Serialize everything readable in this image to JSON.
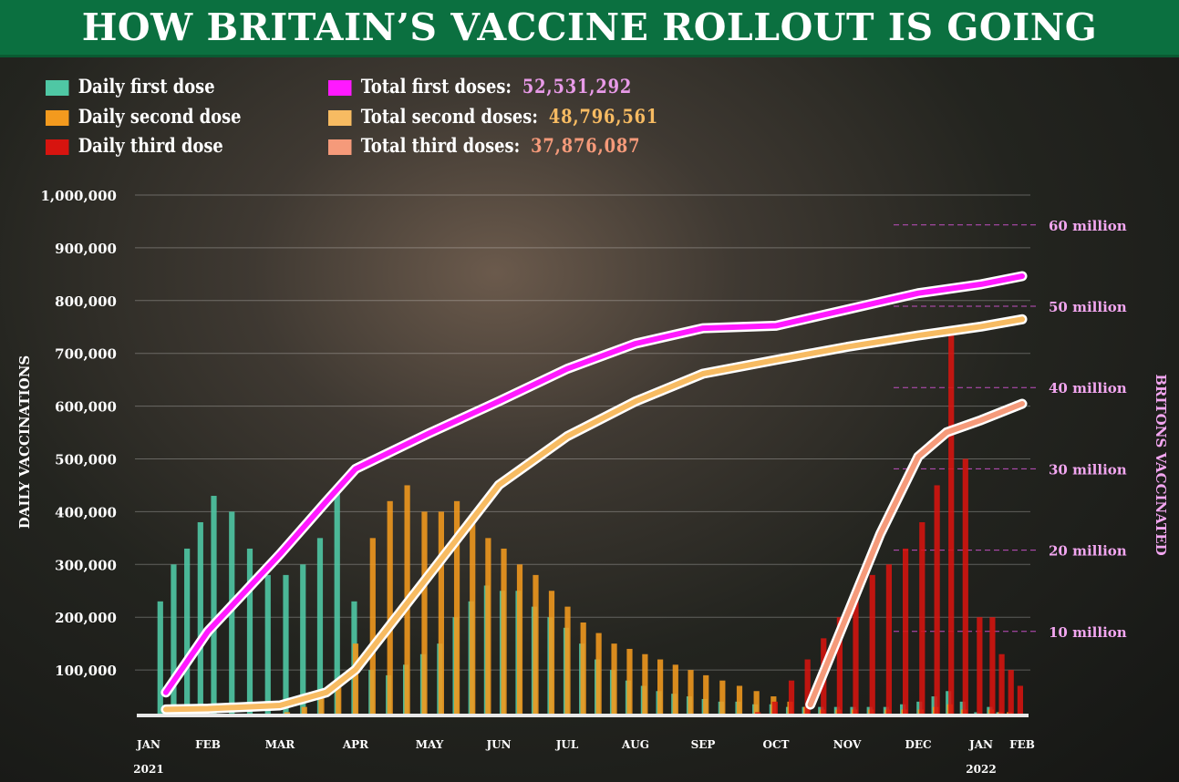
{
  "title": "HOW BRITAIN’S VACCINE ROLLOUT IS GOING",
  "legend": {
    "daily": [
      {
        "label": "Daily first dose",
        "color": "#4fc7a4"
      },
      {
        "label": "Daily second dose",
        "color": "#f39a1e"
      },
      {
        "label": "Daily third dose",
        "color": "#d7140f"
      }
    ],
    "totals": [
      {
        "label": "Total first doses:",
        "value": "52,531,292",
        "color": "#ff19ff",
        "value_color": "#e89ae8"
      },
      {
        "label": "Total second doses:",
        "value": "48,796,561",
        "color": "#f7bb62",
        "value_color": "#f7bb62"
      },
      {
        "label": "Total third doses:",
        "value": "37,876,087",
        "color": "#f59a7a",
        "value_color": "#f59a7a"
      }
    ]
  },
  "chart_data": {
    "type": "bar+line",
    "ylabel": "DAILY VACCINATIONS",
    "y2label": "BRITONS VACCINATED",
    "ylim": [
      0,
      1000000
    ],
    "y2lim_millions": [
      0,
      65
    ],
    "yticks": [
      "100,000",
      "200,000",
      "300,000",
      "400,000",
      "500,000",
      "600,000",
      "700,000",
      "800,000",
      "900,000",
      "1,000,000"
    ],
    "ytick_values": [
      100000,
      200000,
      300000,
      400000,
      500000,
      600000,
      700000,
      800000,
      900000,
      1000000
    ],
    "y2ticks": [
      "10 million",
      "20 million",
      "30 million",
      "40 million",
      "50 million",
      "60 million"
    ],
    "y2tick_values": [
      10,
      20,
      30,
      40,
      50,
      60
    ],
    "xticks": [
      {
        "month": "JAN",
        "year": "2021",
        "date": "2021-01-01"
      },
      {
        "month": "FEB",
        "date": "2021-02-01"
      },
      {
        "month": "MAR",
        "date": "2021-03-01"
      },
      {
        "month": "APR",
        "date": "2021-04-01"
      },
      {
        "month": "MAY",
        "date": "2021-05-01"
      },
      {
        "month": "JUN",
        "date": "2021-06-01"
      },
      {
        "month": "JUL",
        "date": "2021-07-01"
      },
      {
        "month": "AUG",
        "date": "2021-08-01"
      },
      {
        "month": "SEP",
        "date": "2021-09-01"
      },
      {
        "month": "OCT",
        "date": "2021-10-01"
      },
      {
        "month": "NOV",
        "date": "2021-11-01"
      },
      {
        "month": "DEC",
        "date": "2021-12-01"
      },
      {
        "month": "JAN",
        "year": "2022",
        "date": "2022-01-01"
      },
      {
        "month": "FEB",
        "date": "2022-02-01"
      }
    ],
    "grid": true,
    "weeks": [
      "2021-01-04",
      "2021-01-11",
      "2021-01-18",
      "2021-01-25",
      "2021-02-01",
      "2021-02-08",
      "2021-02-15",
      "2021-02-22",
      "2021-03-01",
      "2021-03-08",
      "2021-03-15",
      "2021-03-22",
      "2021-03-29",
      "2021-04-05",
      "2021-04-12",
      "2021-04-19",
      "2021-04-26",
      "2021-05-03",
      "2021-05-10",
      "2021-05-17",
      "2021-05-24",
      "2021-05-31",
      "2021-06-07",
      "2021-06-14",
      "2021-06-21",
      "2021-06-28",
      "2021-07-05",
      "2021-07-12",
      "2021-07-19",
      "2021-07-26",
      "2021-08-02",
      "2021-08-09",
      "2021-08-16",
      "2021-08-23",
      "2021-08-30",
      "2021-09-06",
      "2021-09-13",
      "2021-09-20",
      "2021-09-27",
      "2021-10-04",
      "2021-10-11",
      "2021-10-18",
      "2021-10-25",
      "2021-11-01",
      "2021-11-08",
      "2021-11-15",
      "2021-11-22",
      "2021-11-29",
      "2021-12-06",
      "2021-12-13",
      "2021-12-20",
      "2021-12-27",
      "2022-01-03",
      "2022-01-10",
      "2022-01-17",
      "2022-01-24"
    ],
    "bar_series": [
      {
        "name": "Daily first dose",
        "color": "#4fc7a4",
        "values": [
          230000,
          300000,
          330000,
          380000,
          430000,
          400000,
          330000,
          280000,
          280000,
          300000,
          350000,
          450000,
          230000,
          100000,
          90000,
          110000,
          130000,
          150000,
          200000,
          230000,
          260000,
          250000,
          250000,
          220000,
          200000,
          180000,
          150000,
          120000,
          100000,
          80000,
          70000,
          60000,
          55000,
          50000,
          45000,
          40000,
          40000,
          35000,
          35000,
          30000,
          30000,
          30000,
          30000,
          30000,
          30000,
          30000,
          35000,
          40000,
          50000,
          60000,
          40000,
          20000,
          30000,
          20000,
          15000,
          10000
        ]
      },
      {
        "name": "Daily second dose",
        "color": "#f39a1e",
        "values": [
          10000,
          10000,
          10000,
          10000,
          10000,
          10000,
          10000,
          15000,
          20000,
          30000,
          50000,
          80000,
          150000,
          350000,
          420000,
          450000,
          400000,
          400000,
          420000,
          380000,
          350000,
          330000,
          300000,
          280000,
          250000,
          220000,
          190000,
          170000,
          150000,
          140000,
          130000,
          120000,
          110000,
          100000,
          90000,
          80000,
          70000,
          60000,
          50000,
          40000,
          30000,
          25000,
          25000,
          25000,
          25000,
          25000,
          25000,
          25000,
          30000,
          35000,
          25000,
          15000,
          25000,
          20000,
          20000,
          15000
        ]
      },
      {
        "name": "Daily third dose",
        "color": "#d7140f",
        "values": [
          0,
          0,
          0,
          0,
          0,
          0,
          0,
          0,
          0,
          0,
          0,
          0,
          0,
          0,
          0,
          0,
          0,
          0,
          0,
          0,
          0,
          0,
          0,
          0,
          0,
          0,
          0,
          0,
          0,
          0,
          0,
          0,
          0,
          0,
          0,
          0,
          0,
          20000,
          40000,
          80000,
          120000,
          160000,
          200000,
          250000,
          280000,
          300000,
          330000,
          380000,
          450000,
          750000,
          500000,
          200000,
          200000,
          130000,
          100000,
          70000
        ]
      }
    ],
    "line_series": [
      {
        "name": "Total first doses",
        "color": "#ff19ff",
        "dates": [
          "2021-01-10",
          "2021-02-01",
          "2021-03-01",
          "2021-03-20",
          "2021-04-01",
          "2021-05-01",
          "2021-06-01",
          "2021-07-01",
          "2021-08-01",
          "2021-09-01",
          "2021-10-01",
          "2021-11-01",
          "2021-12-01",
          "2022-01-01",
          "2022-02-01"
        ],
        "millions": [
          2.5,
          10,
          19.5,
          26,
          30,
          34.4,
          38.3,
          42.3,
          45.4,
          47.3,
          47.6,
          49.6,
          51.6,
          52.7,
          53.7
        ]
      },
      {
        "name": "Total second doses",
        "color": "#f7bb62",
        "dates": [
          "2021-01-10",
          "2021-02-01",
          "2021-03-01",
          "2021-03-20",
          "2021-04-01",
          "2021-05-01",
          "2021-06-01",
          "2021-07-01",
          "2021-08-01",
          "2021-09-01",
          "2021-10-01",
          "2021-11-01",
          "2021-12-01",
          "2022-01-01",
          "2022-02-01"
        ],
        "millions": [
          0.4,
          0.5,
          0.9,
          2.5,
          5.3,
          17,
          28,
          34,
          38.3,
          41.7,
          43.4,
          45,
          46.4,
          47.5,
          48.4
        ]
      },
      {
        "name": "Total third doses",
        "color": "#f59a7a",
        "dates": [
          "2021-10-16",
          "2021-11-01",
          "2021-11-15",
          "2021-12-01",
          "2021-12-15",
          "2022-01-01",
          "2022-02-01"
        ],
        "millions": [
          1,
          12,
          22,
          31.5,
          34.5,
          36,
          38
        ]
      }
    ]
  }
}
